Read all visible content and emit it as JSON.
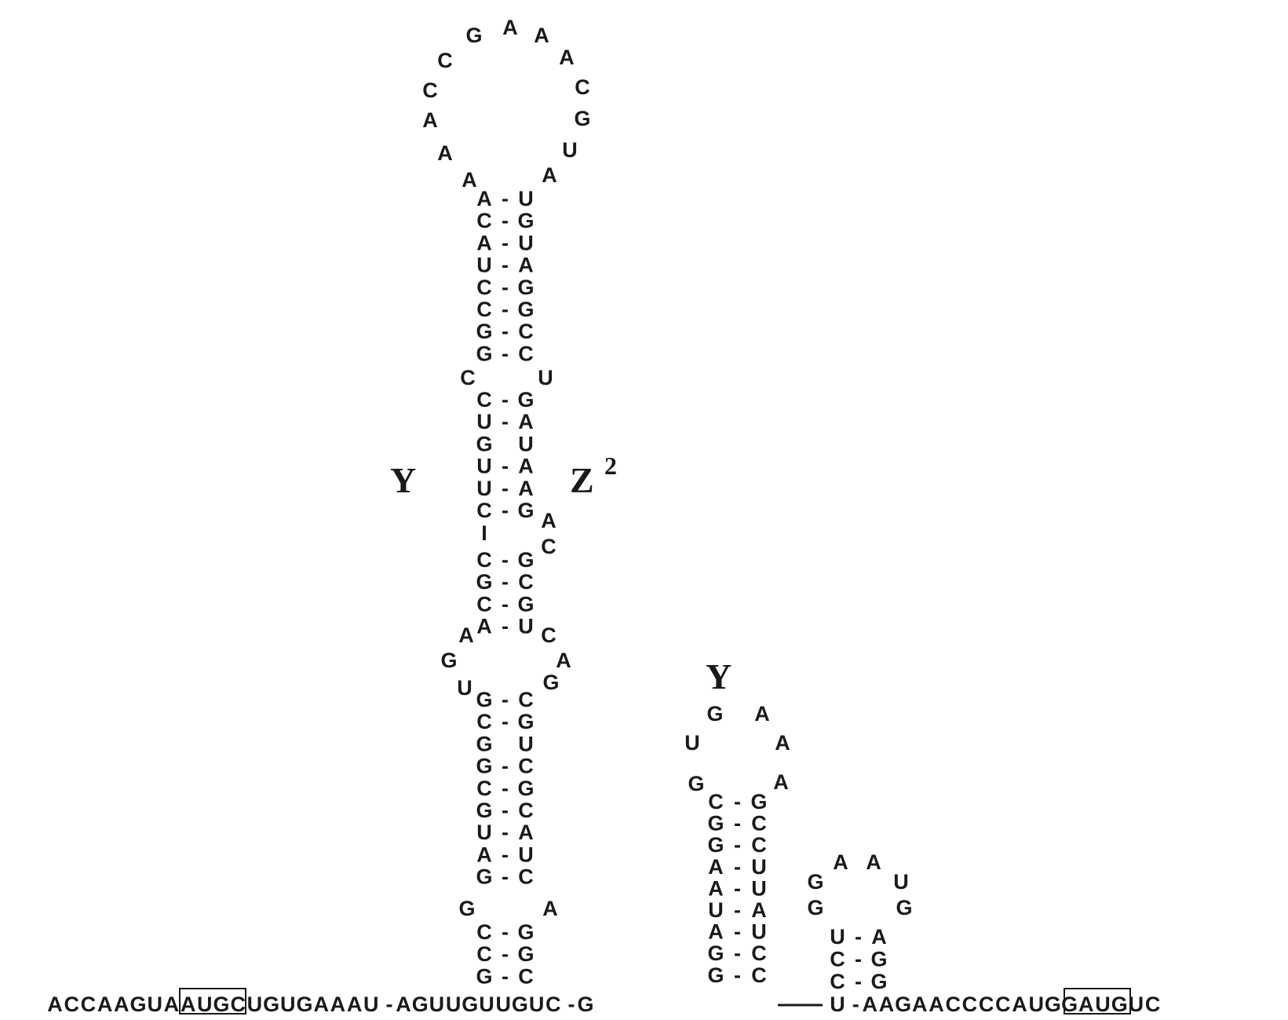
{
  "labels": {
    "left_stem": "Y",
    "right_stem": "Z",
    "right_stem_sup": "2",
    "middle_hairpin": "Y"
  },
  "hairpin1": {
    "loop": [
      "A",
      "A",
      "A",
      "C",
      "C",
      "G",
      "A",
      "A",
      "A",
      "C",
      "G",
      "U",
      "A"
    ],
    "stem_upper": [
      [
        "A",
        "U"
      ],
      [
        "C",
        "G"
      ],
      [
        "A",
        "U"
      ],
      [
        "U",
        "A"
      ],
      [
        "C",
        "G"
      ],
      [
        "C",
        "G"
      ],
      [
        "G",
        "C"
      ],
      [
        "G",
        "C"
      ]
    ],
    "bulge_left": "C",
    "bulge_right": "U",
    "stem_mid": [
      [
        "C",
        "G"
      ],
      [
        "U",
        "A"
      ],
      [
        "G",
        "U"
      ],
      [
        "U",
        "A"
      ],
      [
        "U",
        "A"
      ],
      [
        "C",
        "G"
      ]
    ],
    "mismatch_left": "I",
    "internal_right": [
      "A",
      "C"
    ],
    "stem_mid2": [
      [
        "C",
        "G"
      ],
      [
        "G",
        "C"
      ],
      [
        "C",
        "G"
      ],
      [
        "A",
        "U"
      ]
    ],
    "internal_loop_left": [
      "A",
      "G",
      "U"
    ],
    "internal_loop_right": [
      "C",
      "A",
      "G"
    ],
    "stem_lower": [
      [
        "G",
        "C"
      ],
      [
        "C",
        "G"
      ],
      [
        "G",
        "U"
      ],
      [
        "G",
        "C"
      ],
      [
        "C",
        "G"
      ],
      [
        "G",
        "C"
      ],
      [
        "U",
        "A"
      ],
      [
        "A",
        "U"
      ],
      [
        "G",
        "C"
      ]
    ],
    "bulge_lower_left": "G",
    "bulge_lower_right": "A",
    "stem_base": [
      [
        "C",
        "G"
      ],
      [
        "C",
        "G"
      ],
      [
        "G",
        "C"
      ]
    ]
  },
  "hairpin2": {
    "loop": [
      "G",
      "U",
      "G",
      "A",
      "A",
      "A"
    ],
    "stem": [
      [
        "C",
        "G"
      ],
      [
        "G",
        "C"
      ],
      [
        "G",
        "C"
      ],
      [
        "A",
        "U"
      ],
      [
        "A",
        "U"
      ],
      [
        "U",
        "A"
      ],
      [
        "A",
        "U"
      ],
      [
        "G",
        "C"
      ],
      [
        "G",
        "C"
      ]
    ]
  },
  "hairpin3": {
    "loop": [
      "G",
      "G",
      "A",
      "A",
      "U",
      "G"
    ],
    "stem": [
      [
        "U",
        "A"
      ],
      [
        "C",
        "G"
      ],
      [
        "C",
        "G"
      ]
    ]
  },
  "baseline": {
    "pre": "ACCAAG",
    "stop_codon": "UAA",
    "mid1": "UGCUGUGAAAU",
    "pair1_right": "AGUUGUUGUC",
    "pair2_right": "G",
    "pair3_left": "U",
    "post": "AAGAACCCC",
    "start_codon": "AUG",
    "tail": "GAUGUC"
  }
}
